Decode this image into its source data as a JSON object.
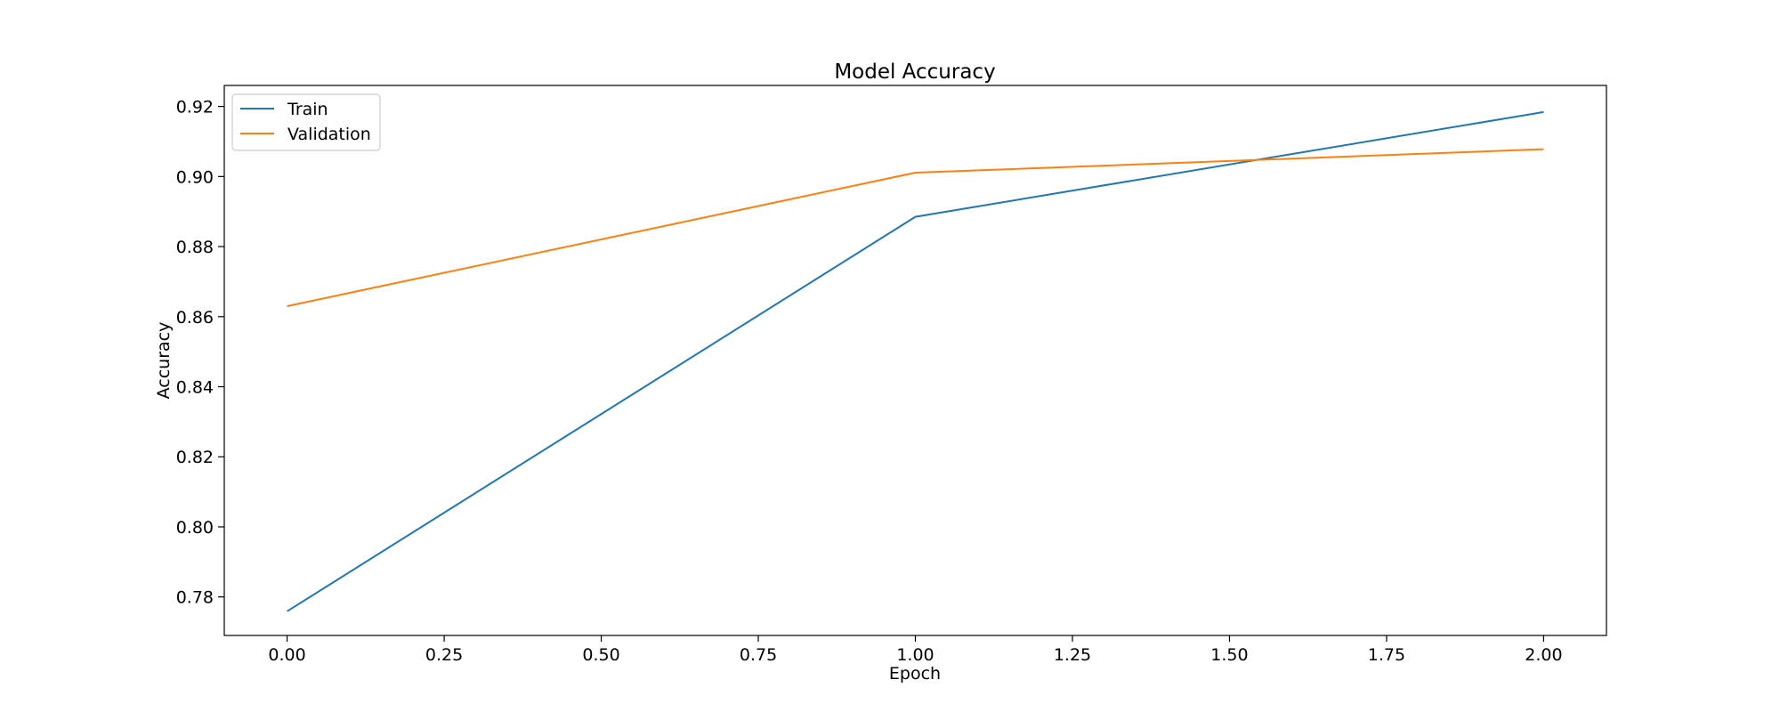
{
  "chart_data": {
    "type": "line",
    "title": "Model Accuracy",
    "xlabel": "Epoch",
    "ylabel": "Accuracy",
    "x": [
      0,
      1,
      2
    ],
    "xlim": [
      -0.1,
      2.1
    ],
    "ylim": [
      0.769,
      0.926
    ],
    "xticks": [
      "0.00",
      "0.25",
      "0.50",
      "0.75",
      "1.00",
      "1.25",
      "1.50",
      "1.75",
      "2.00"
    ],
    "yticks": [
      "0.78",
      "0.80",
      "0.82",
      "0.84",
      "0.86",
      "0.88",
      "0.90",
      "0.92"
    ],
    "series": [
      {
        "name": "Train",
        "values": [
          0.7759,
          0.8885,
          0.9184
        ],
        "color": "#1f77b4"
      },
      {
        "name": "Validation",
        "values": [
          0.863,
          0.9011,
          0.9078
        ],
        "color": "#ff7f0e"
      }
    ],
    "legend": "upper-left",
    "grid": false
  }
}
